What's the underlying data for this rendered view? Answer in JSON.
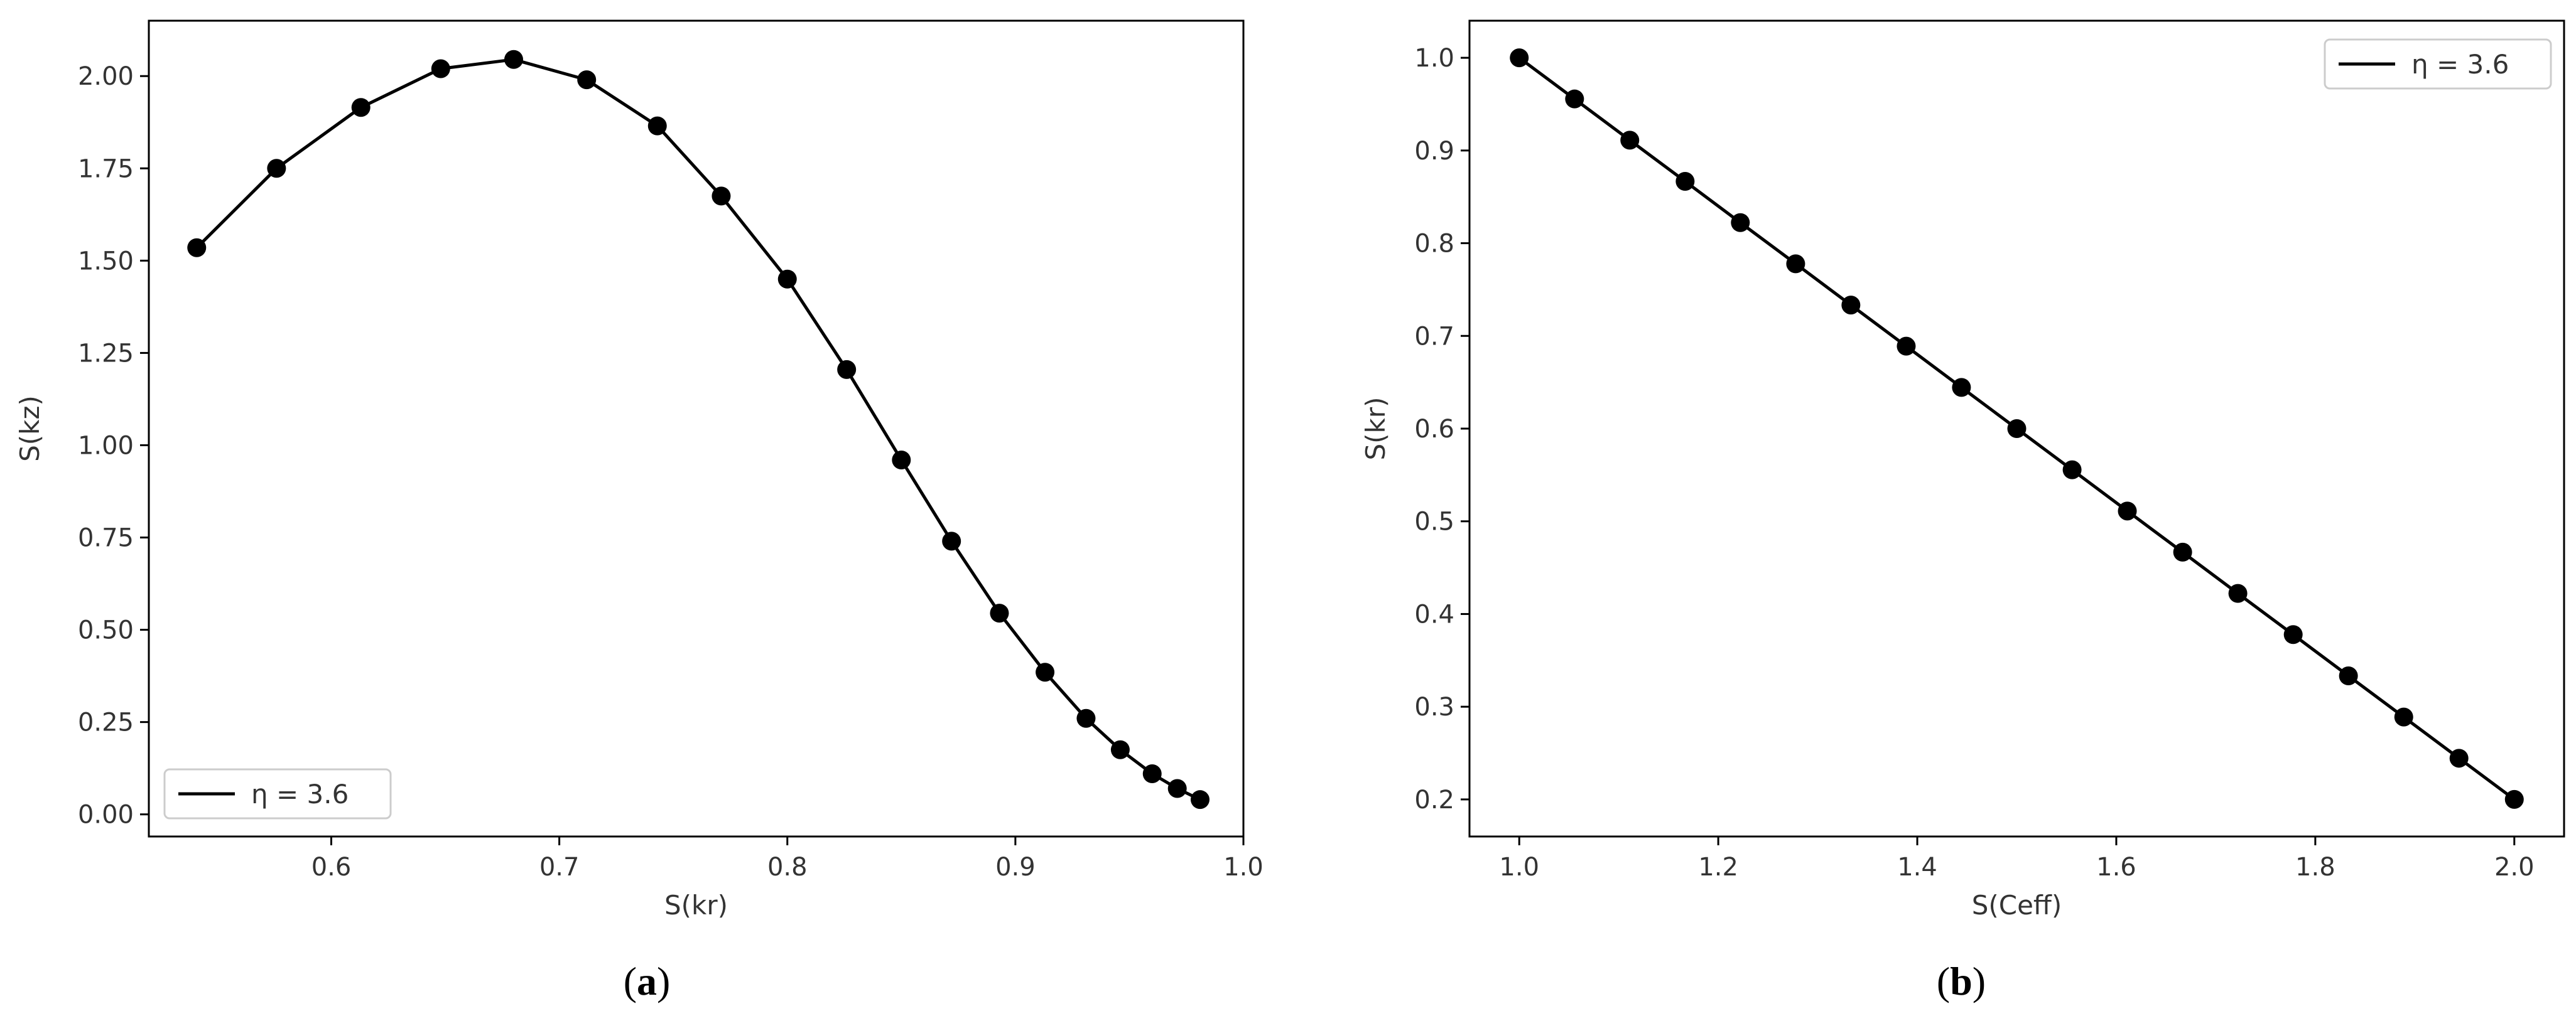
{
  "chart_data": [
    {
      "type": "line",
      "panel": "a",
      "caption": {
        "open": "(",
        "letter": "a",
        "close": ")"
      },
      "xlabel": "S(kr)",
      "ylabel": "S(kz)",
      "xlim": [
        0.52,
        1.0
      ],
      "ylim": [
        -0.06,
        2.15
      ],
      "xticks": [
        0.6,
        0.7,
        0.8,
        0.9,
        1.0
      ],
      "xtick_labels": [
        "0.6",
        "0.7",
        "0.8",
        "0.9",
        "1.0"
      ],
      "yticks": [
        0.0,
        0.25,
        0.5,
        0.75,
        1.0,
        1.25,
        1.5,
        1.75,
        2.0
      ],
      "ytick_labels": [
        "0.00",
        "0.25",
        "0.50",
        "0.75",
        "1.00",
        "1.25",
        "1.50",
        "1.75",
        "2.00"
      ],
      "grid": false,
      "legend_position": "lower-left",
      "series": [
        {
          "name": "η = 3.6",
          "color": "#000000",
          "marker": "circle",
          "x": [
            0.541,
            0.576,
            0.613,
            0.648,
            0.68,
            0.712,
            0.743,
            0.771,
            0.8,
            0.826,
            0.85,
            0.872,
            0.893,
            0.913,
            0.931,
            0.946,
            0.96,
            0.971,
            0.981
          ],
          "y": [
            1.535,
            1.75,
            1.915,
            2.02,
            2.045,
            1.99,
            1.865,
            1.675,
            1.45,
            1.205,
            0.96,
            0.74,
            0.545,
            0.385,
            0.26,
            0.175,
            0.11,
            0.07,
            0.04
          ]
        }
      ]
    },
    {
      "type": "line",
      "panel": "b",
      "caption": {
        "open": "(",
        "letter": "b",
        "close": ")"
      },
      "xlabel": "S(Ceff)",
      "ylabel": "S(kr)",
      "xlim": [
        0.95,
        2.05
      ],
      "ylim": [
        0.16,
        1.04
      ],
      "xticks": [
        1.0,
        1.2,
        1.4,
        1.6,
        1.8,
        2.0
      ],
      "xtick_labels": [
        "1.0",
        "1.2",
        "1.4",
        "1.6",
        "1.8",
        "2.0"
      ],
      "yticks": [
        0.2,
        0.3,
        0.4,
        0.5,
        0.6,
        0.7,
        0.8,
        0.9,
        1.0
      ],
      "ytick_labels": [
        "0.2",
        "0.3",
        "0.4",
        "0.5",
        "0.6",
        "0.7",
        "0.8",
        "0.9",
        "1.0"
      ],
      "grid": false,
      "legend_position": "upper-right",
      "series": [
        {
          "name": "η = 3.6",
          "color": "#000000",
          "marker": "circle",
          "x": [
            1.0,
            1.0556,
            1.1111,
            1.1667,
            1.2222,
            1.2778,
            1.3333,
            1.3889,
            1.4444,
            1.5,
            1.5556,
            1.6111,
            1.6667,
            1.7222,
            1.7778,
            1.8333,
            1.8889,
            1.9444,
            2.0
          ],
          "y": [
            1.0,
            0.9556,
            0.9111,
            0.8667,
            0.8222,
            0.7778,
            0.7333,
            0.6889,
            0.6444,
            0.6,
            0.5556,
            0.5111,
            0.4667,
            0.4222,
            0.3778,
            0.3333,
            0.2889,
            0.2444,
            0.2
          ]
        }
      ]
    }
  ]
}
